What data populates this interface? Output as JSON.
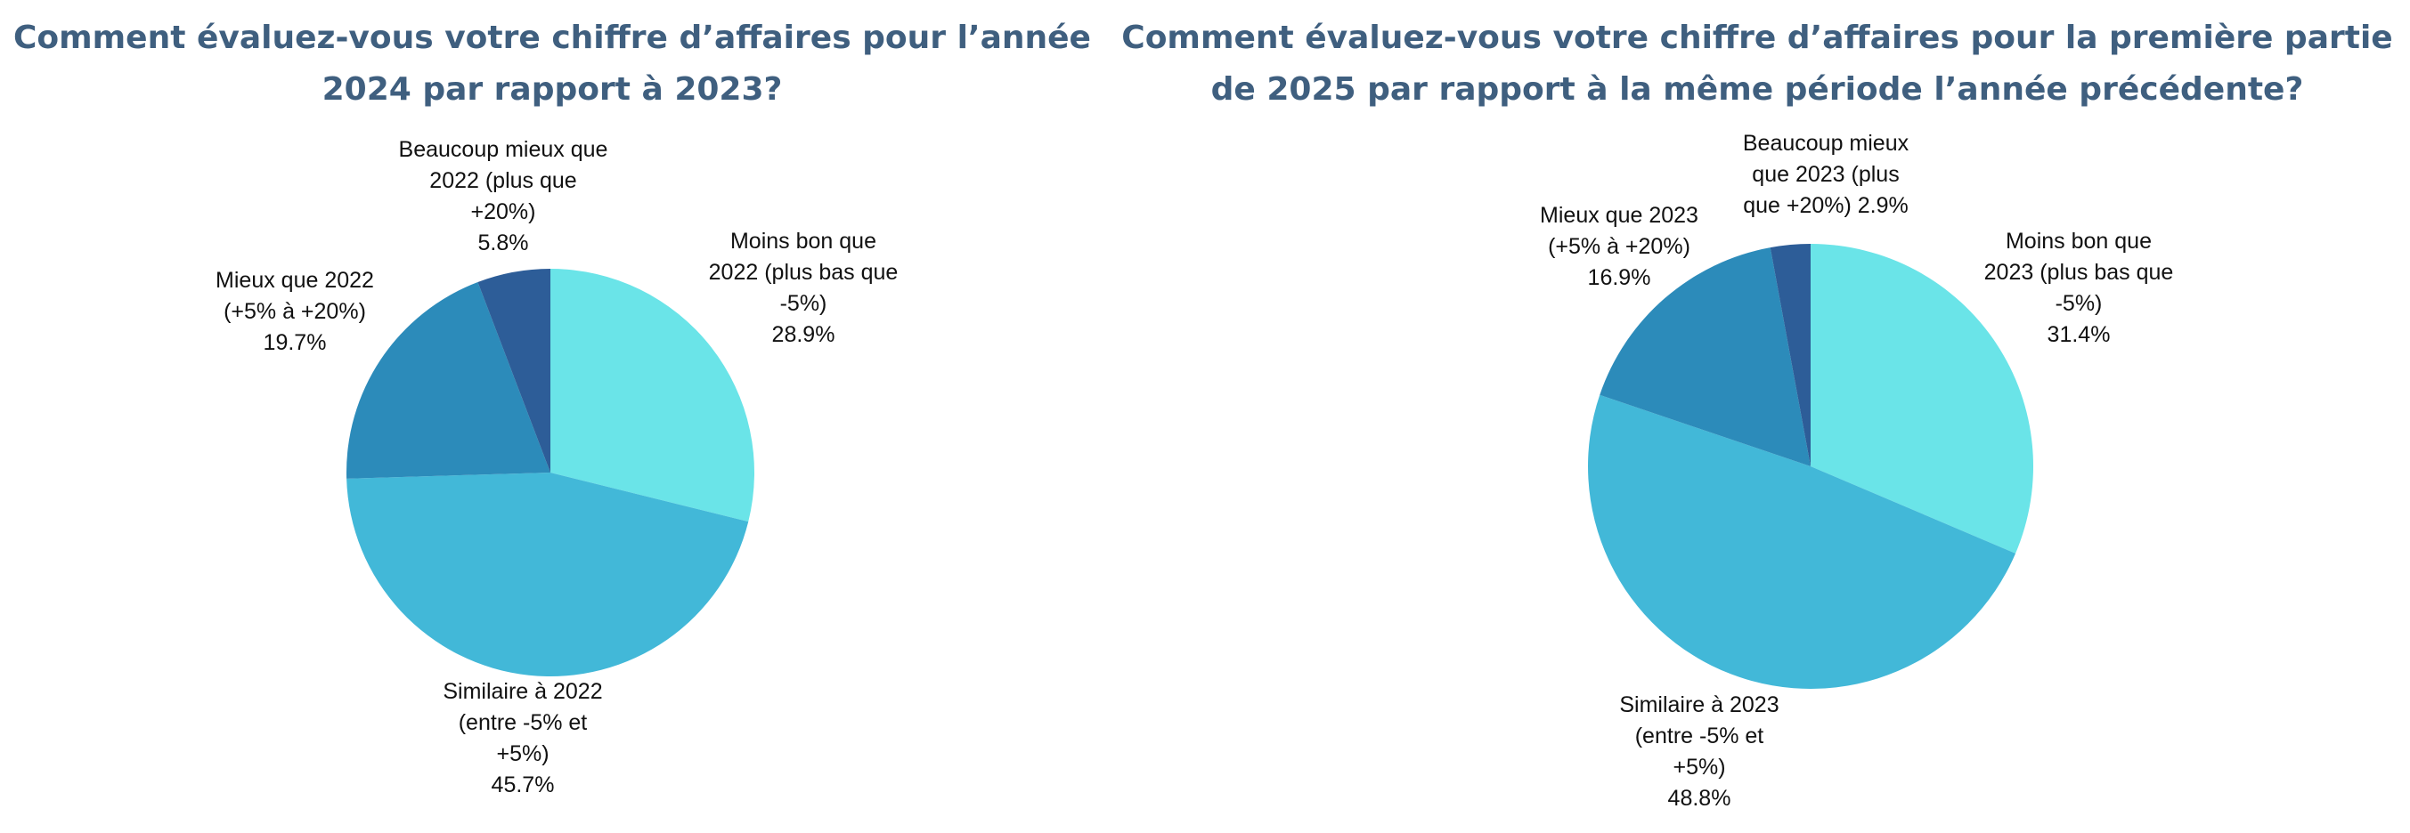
{
  "charts": [
    {
      "title": "Comment évaluez-vous votre chiffre d’affaires pour l’année 2024 par rapport à 2023?",
      "chart_data": {
        "type": "pie",
        "categories": [
          "Moins bon que 2022 (plus bas que -5%)",
          "Similaire à 2022 (entre -5% et +5%)",
          "Mieux que 2022 (+5% à +20%)",
          "Beaucoup mieux que 2022 (plus que +20%)"
        ],
        "values": [
          28.9,
          45.7,
          19.7,
          5.8
        ],
        "colors": [
          "#6ae4e8",
          "#42b8d8",
          "#2c8bba",
          "#2d5d98"
        ],
        "start": "12 o'clock",
        "direction": "clockwise",
        "legend": "none"
      },
      "labels": [
        {
          "lines": [
            "Moins bon que",
            "2022 (plus bas que",
            "-5%)",
            "28.9%"
          ]
        },
        {
          "lines": [
            "Similaire à 2022",
            "(entre -5% et",
            "+5%)",
            "45.7%"
          ]
        },
        {
          "lines": [
            "Mieux que 2022",
            "(+5% à +20%)",
            "19.7%"
          ]
        },
        {
          "lines": [
            "Beaucoup mieux que",
            "2022 (plus que",
            "+20%)",
            "5.8%"
          ]
        }
      ]
    },
    {
      "title": "Comment évaluez-vous votre chiffre d’affaires pour la première partie de 2025 par rapport à la même période l’année précédente?",
      "chart_data": {
        "type": "pie",
        "categories": [
          "Moins bon que 2023 (plus bas que -5%)",
          "Similaire à 2023 (entre -5% et +5%)",
          "Mieux que 2023 (+5% à +20%)",
          "Beaucoup mieux que 2023 (plus que +20%)"
        ],
        "values": [
          31.4,
          48.8,
          16.9,
          2.9
        ],
        "colors": [
          "#6ae4e8",
          "#42b8d8",
          "#2c8bba",
          "#2d5d98"
        ],
        "start": "12 o'clock",
        "direction": "clockwise",
        "legend": "none"
      },
      "labels": [
        {
          "lines": [
            "Moins bon que",
            "2023 (plus bas que",
            "-5%)",
            "31.4%"
          ]
        },
        {
          "lines": [
            "Similaire à 2023",
            "(entre -5% et",
            "+5%)",
            "48.8%"
          ]
        },
        {
          "lines": [
            "Mieux que 2023",
            "(+5% à +20%)",
            "16.9%"
          ]
        },
        {
          "lines": [
            "Beaucoup mieux",
            "que 2023 (plus",
            "que  +20%) 2.9%"
          ]
        }
      ]
    }
  ]
}
